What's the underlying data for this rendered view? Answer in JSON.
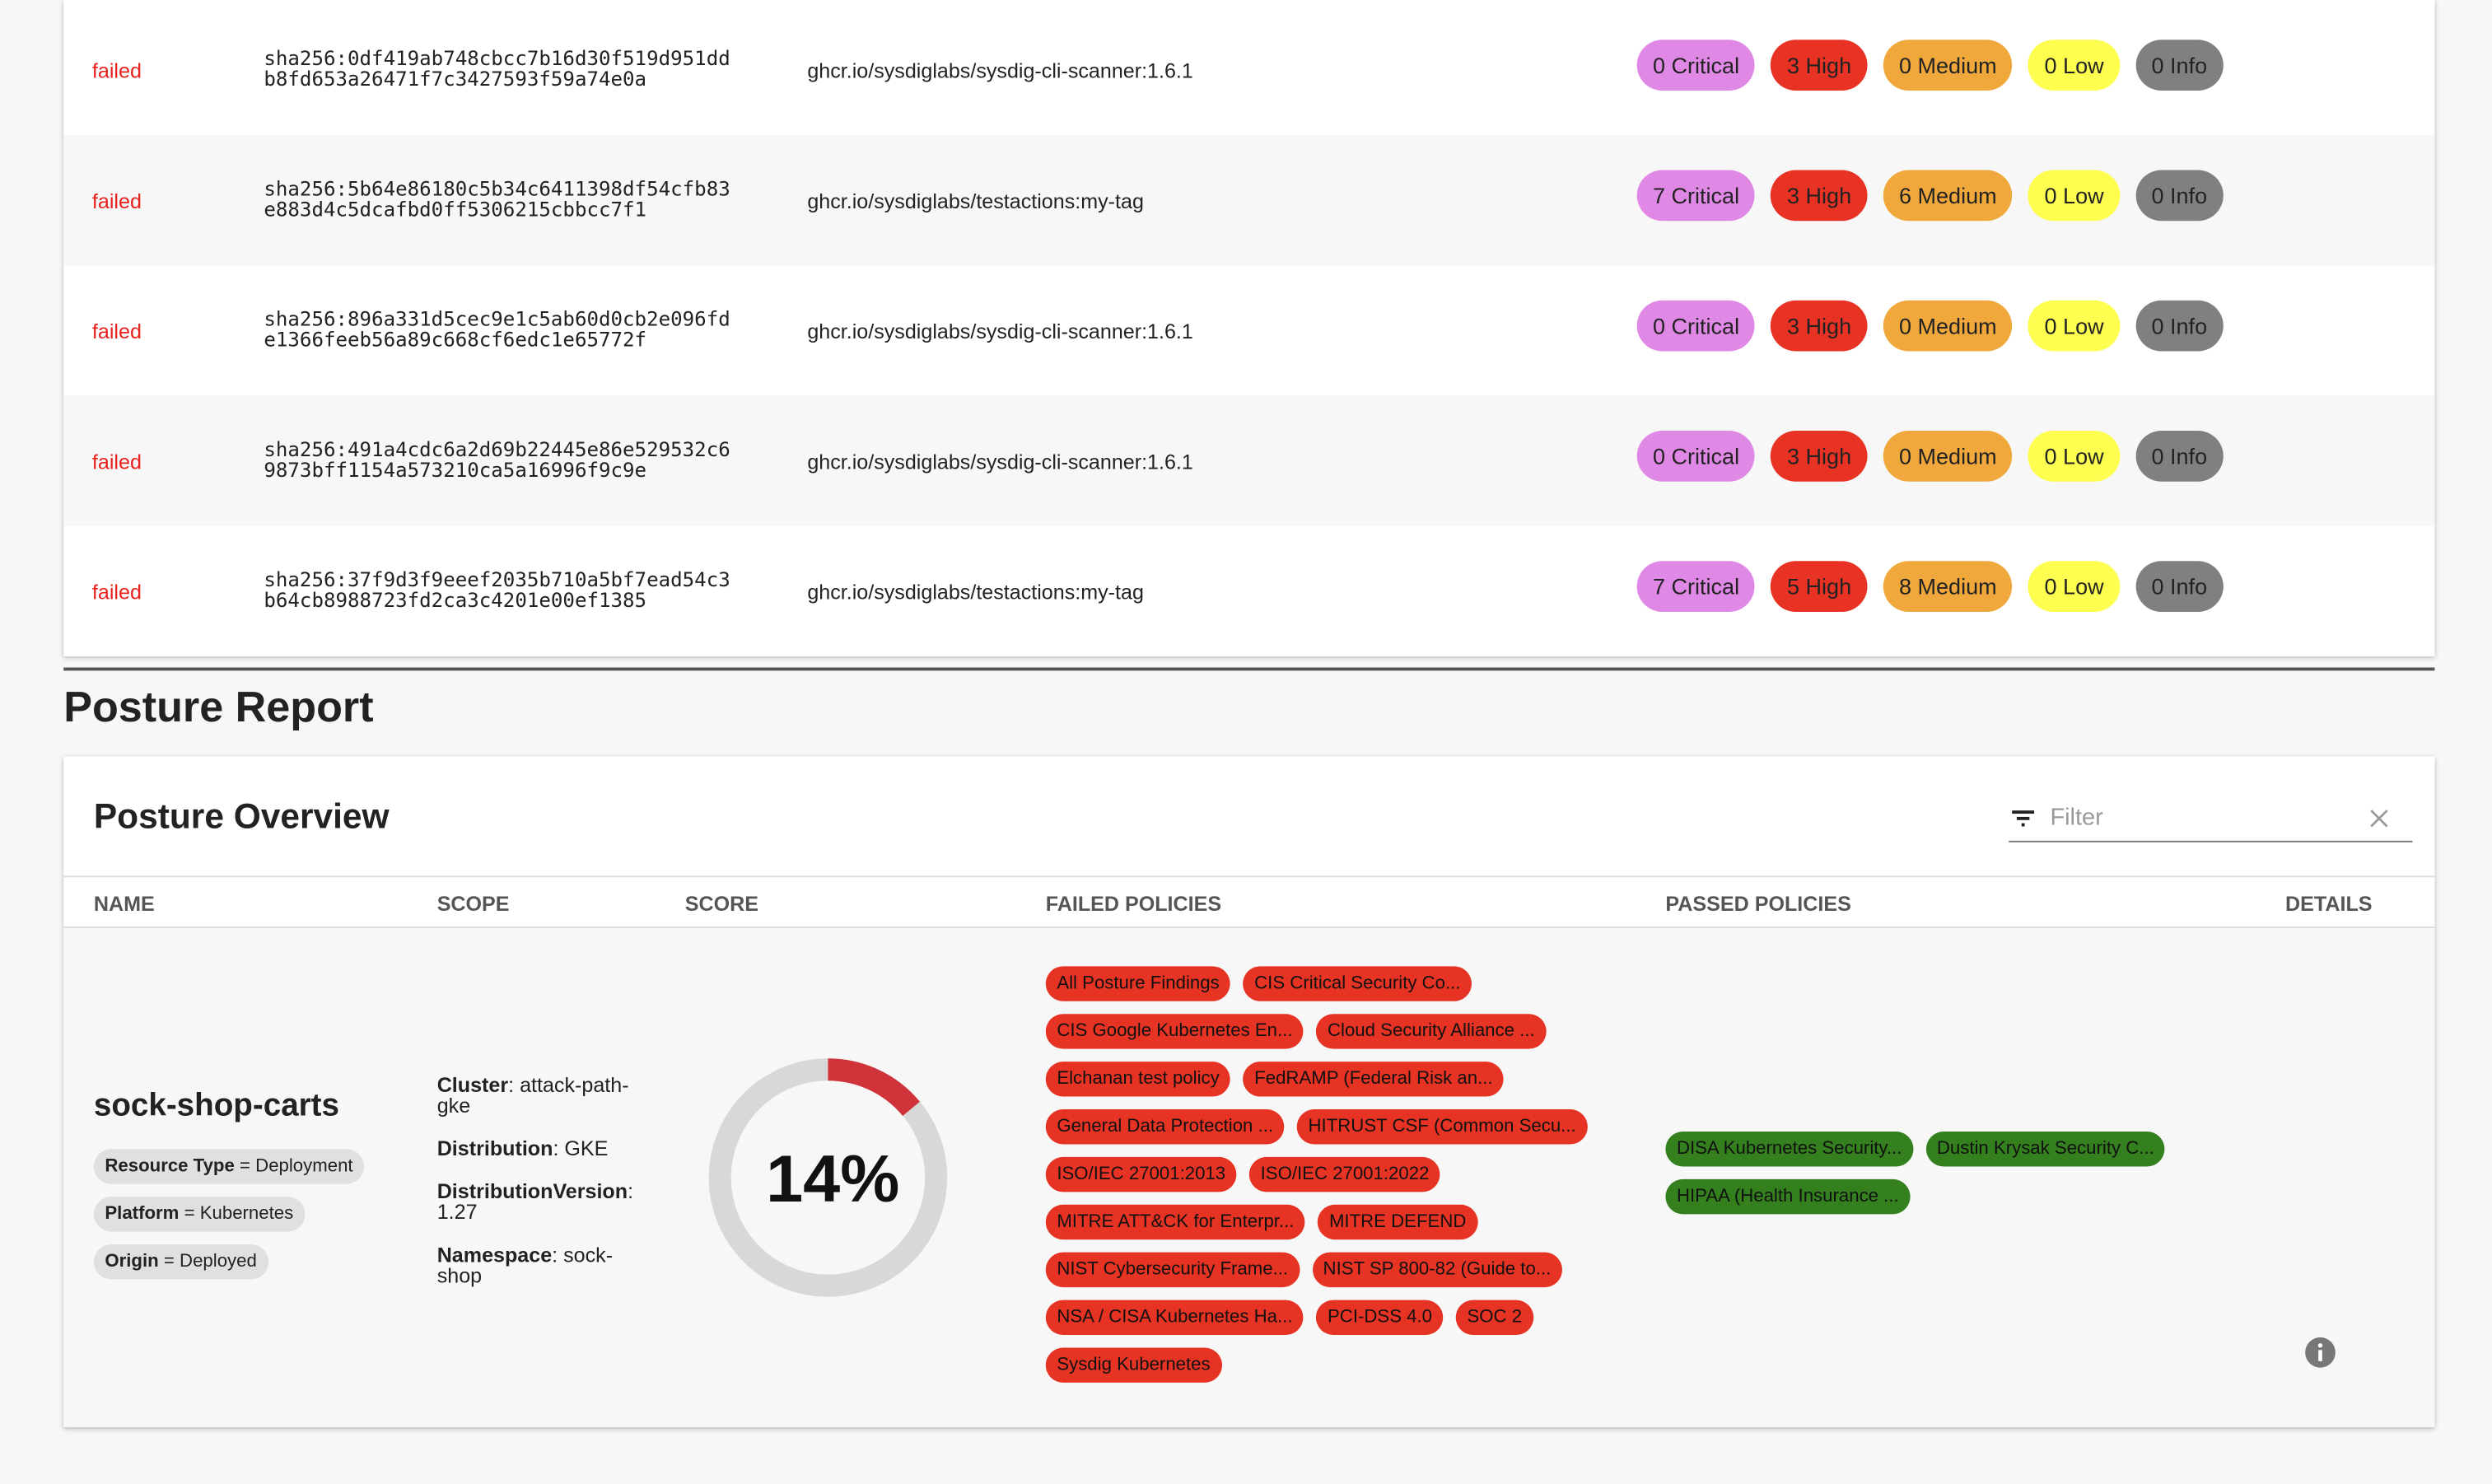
{
  "scan_results": {
    "rows": [
      {
        "status": "failed",
        "hash": [
          "sha256:0df419ab748cbcc7b16d30f519d951dd",
          "b8fd653a26471f7c3427593f59a74e0a"
        ],
        "image": "ghcr.io/sysdiglabs/sysdig-cli-scanner:1.6.1",
        "badges": [
          "0 Critical",
          "3 High",
          "0 Medium",
          "0 Low",
          "0 Info"
        ]
      },
      {
        "status": "failed",
        "hash": [
          "sha256:5b64e86180c5b34c6411398df54cfb83",
          "e883d4c5dcafbd0ff5306215cbbcc7f1"
        ],
        "image": "ghcr.io/sysdiglabs/testactions:my-tag",
        "badges": [
          "7 Critical",
          "3 High",
          "6 Medium",
          "0 Low",
          "0 Info"
        ]
      },
      {
        "status": "failed",
        "hash": [
          "sha256:896a331d5cec9e1c5ab60d0cb2e096fd",
          "e1366feeb56a89c668cf6edc1e65772f"
        ],
        "image": "ghcr.io/sysdiglabs/sysdig-cli-scanner:1.6.1",
        "badges": [
          "0 Critical",
          "3 High",
          "0 Medium",
          "0 Low",
          "0 Info"
        ]
      },
      {
        "status": "failed",
        "hash": [
          "sha256:491a4cdc6a2d69b22445e86e529532c6",
          "9873bff1154a573210ca5a16996f9c9e"
        ],
        "image": "ghcr.io/sysdiglabs/sysdig-cli-scanner:1.6.1",
        "badges": [
          "0 Critical",
          "3 High",
          "0 Medium",
          "0 Low",
          "0 Info"
        ]
      },
      {
        "status": "failed",
        "hash": [
          "sha256:37f9d3f9eeef2035b710a5bf7ead54c3",
          "b64cb8988723fd2ca3c4201e00ef1385"
        ],
        "image": "ghcr.io/sysdiglabs/testactions:my-tag",
        "badges": [
          "7 Critical",
          "5 High",
          "8 Medium",
          "0 Low",
          "0 Info"
        ]
      }
    ],
    "severity_colors": {
      "critical": "#e088e6",
      "high": "#e83324",
      "medium": "#f0a83c",
      "low": "#fefe50",
      "info": "#808080"
    }
  },
  "posture_report": {
    "title": "Posture Report",
    "card_title": "Posture Overview",
    "filter_placeholder": "Filter",
    "columns": [
      "NAME",
      "SCOPE",
      "SCORE",
      "FAILED POLICIES",
      "PASSED POLICIES",
      "DETAILS"
    ],
    "row": {
      "name": "sock-shop-carts",
      "chips": [
        {
          "key": "Resource Type",
          "value": "= Deployment"
        },
        {
          "key": "Platform",
          "value": "= Kubernetes"
        },
        {
          "key": "Origin",
          "value": "= Deployed"
        }
      ],
      "scope": [
        {
          "key": "Cluster",
          "value": ": attack-path-gke"
        },
        {
          "key": "Distribution",
          "value": ": GKE"
        },
        {
          "key": "DistributionVersion",
          "value": ": 1.27"
        },
        {
          "key": "Namespace",
          "value": ": sock-shop"
        }
      ],
      "score_label": "14%",
      "score_percent": 14,
      "score_color": "#d0343a",
      "failed_policies": [
        "All Posture Findings",
        "CIS Critical Security Co...",
        "CIS Google Kubernetes En...",
        "Cloud Security Alliance ...",
        "Elchanan test policy",
        "FedRAMP (Federal Risk an...",
        "General Data Protection ...",
        "HITRUST CSF (Common Secu...",
        "ISO/IEC 27001:2013",
        "ISO/IEC 27001:2022",
        "MITRE ATT&CK for Enterpr...",
        "MITRE DEFEND",
        "NIST Cybersecurity Frame...",
        "NIST SP 800-82 (Guide to...",
        "NSA / CISA Kubernetes Ha...",
        "PCI-DSS 4.0",
        "SOC 2",
        "Sysdig Kubernetes"
      ],
      "passed_policies": [
        "DISA Kubernetes Security...",
        "Dustin Krysak Security C...",
        "HIPAA (Health Insurance ..."
      ],
      "details_icon": "info-icon"
    }
  }
}
